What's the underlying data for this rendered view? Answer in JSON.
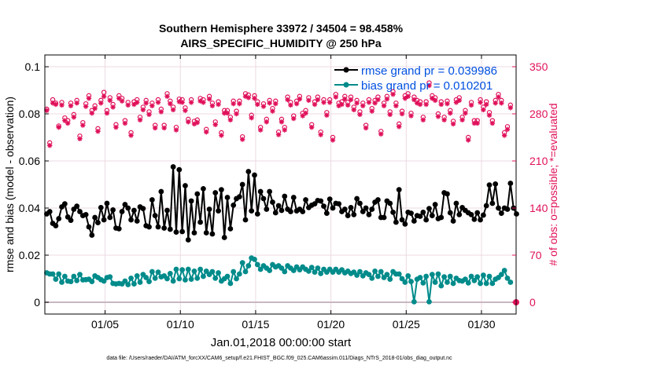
{
  "title": {
    "line1": "Southern Hemisphere 33972 / 34504 = 98.458%",
    "line2": "AIRS_SPECIFIC_HUMIDITY @ 250 hPa"
  },
  "xlabel": "Jan.01,2018 00:00:00 start",
  "footer": "data file: /Users/raeder/DAI/ATM_forcXX/CAM6_setup/f.e21.FHIST_BGC.f09_025.CAM6assim.011/Diags_NTrS_2018-01/obs_diag_output.nc",
  "colors": {
    "rmse": "#000000",
    "bias": "#008b8b",
    "obs": "#e0105a",
    "legend_text": "#0050e0"
  },
  "chart_data": {
    "type": "line",
    "ylabel": "rmse and bias (model - observation)",
    "ylabel_right": "# of obs: o=possible; *=evaluated",
    "xlim": [
      0.5,
      31.8
    ],
    "ylim": [
      -0.005,
      0.105
    ],
    "ylim_right": [
      -17.5,
      367.5
    ],
    "xticks": [
      4.5,
      9.5,
      14.5,
      19.5,
      24.5,
      29.5
    ],
    "xtick_labels": [
      "01/05",
      "01/10",
      "01/15",
      "01/20",
      "01/25",
      "01/30"
    ],
    "yticks": [
      0,
      0.02,
      0.04,
      0.06,
      0.08,
      0.1
    ],
    "ytick_labels": [
      "0",
      "0.02",
      "0.04",
      "0.06",
      "0.08",
      "0.1"
    ],
    "yticks_right": [
      0,
      70,
      140,
      210,
      280,
      350
    ],
    "ytick_labels_right": [
      "0",
      "70",
      "140",
      "210",
      "280",
      "350"
    ],
    "grid": true,
    "legend_position": "top-right",
    "legend": [
      "rmse grand pr = 0.039986",
      "bias grand pr = 0.010201"
    ],
    "series": [
      {
        "name": "rmse grand pr = 0.039986",
        "values": [
          0.0375,
          0.0385,
          0.0335,
          0.0325,
          0.0355,
          0.0405,
          0.0418,
          0.0362,
          0.0348,
          0.0395,
          0.0408,
          0.0385,
          0.0368,
          0.0372,
          0.032,
          0.0285,
          0.036,
          0.0338,
          0.0402,
          0.035,
          0.042,
          0.036,
          0.0392,
          0.0315,
          0.0312,
          0.0385,
          0.0415,
          0.04,
          0.035,
          0.039,
          0.0345,
          0.0405,
          0.0398,
          0.0325,
          0.032,
          0.0435,
          0.0368,
          0.032,
          0.047,
          0.0315,
          0.039,
          0.031,
          0.0575,
          0.0298,
          0.0563,
          0.03,
          0.0495,
          0.0265,
          0.043,
          0.0295,
          0.046,
          0.034,
          0.0482,
          0.0295,
          0.0395,
          0.029,
          0.0465,
          0.0388,
          0.0478,
          0.0275,
          0.0445,
          0.0312,
          0.0412,
          0.044,
          0.0448,
          0.05,
          0.035,
          0.0555,
          0.0388,
          0.054,
          0.0375,
          0.047,
          0.044,
          0.0395,
          0.047,
          0.0425,
          0.038,
          0.041,
          0.039,
          0.045,
          0.0395,
          0.0385,
          0.0445,
          0.0388,
          0.0395,
          0.0385,
          0.0435,
          0.0402,
          0.0412,
          0.0418,
          0.0432,
          0.043,
          0.0408,
          0.0378,
          0.0438,
          0.04,
          0.042,
          0.0418,
          0.0385,
          0.0395,
          0.0368,
          0.0402,
          0.0372,
          0.044,
          0.042,
          0.0385,
          0.04,
          0.0372,
          0.0395,
          0.0425,
          0.0435,
          0.036,
          0.036,
          0.043,
          0.042,
          0.0382,
          0.034,
          0.0478,
          0.035,
          0.0332,
          0.0382,
          0.0378,
          0.0345,
          0.0368,
          0.0365,
          0.0382,
          0.035,
          0.0398,
          0.0368,
          0.0415,
          0.0355,
          0.036,
          0.0465,
          0.046,
          0.038,
          0.0345,
          0.042,
          0.0372,
          0.0402,
          0.039,
          0.038,
          0.0372,
          0.0352,
          0.038,
          0.035,
          0.037,
          0.041,
          0.0498,
          0.042,
          0.0502,
          0.04,
          0.0378,
          0.04,
          0.0395,
          0.0505,
          0.04,
          0.0375
        ],
        "x_start": 0.625,
        "x_step": 0.2
      },
      {
        "name": "bias grand pr = 0.010201",
        "values": [
          0.0125,
          0.012,
          0.012,
          0.0098,
          0.012,
          0.0085,
          0.011,
          0.009,
          0.0088,
          0.011,
          0.0092,
          0.0118,
          0.0095,
          0.0096,
          0.0098,
          0.0088,
          0.0112,
          0.0105,
          0.0096,
          0.009,
          0.0105,
          0.0108,
          0.008,
          0.0078,
          0.008,
          0.0078,
          0.009,
          0.0075,
          0.0102,
          0.0078,
          0.0112,
          0.0085,
          0.0118,
          0.0105,
          0.0088,
          0.013,
          0.0102,
          0.0128,
          0.0108,
          0.0112,
          0.01,
          0.0122,
          0.009,
          0.014,
          0.01,
          0.0138,
          0.0095,
          0.014,
          0.0098,
          0.0132,
          0.0102,
          0.014,
          0.011,
          0.0132,
          0.0118,
          0.013,
          0.0102,
          0.0125,
          0.009,
          0.01,
          0.011,
          0.008,
          0.013,
          0.01,
          0.012,
          0.0168,
          0.013,
          0.0155,
          0.0188,
          0.0182,
          0.016,
          0.014,
          0.0155,
          0.0145,
          0.0135,
          0.016,
          0.015,
          0.0155,
          0.0145,
          0.013,
          0.0155,
          0.0145,
          0.0135,
          0.015,
          0.0138,
          0.015,
          0.014,
          0.0132,
          0.0148,
          0.0128,
          0.0145,
          0.0122,
          0.014,
          0.0128,
          0.014,
          0.0128,
          0.014,
          0.0128,
          0.0138,
          0.0125,
          0.0132,
          0.0122,
          0.0128,
          0.0115,
          0.013,
          0.0112,
          0.0125,
          0.0118,
          0.0102,
          0.0132,
          0.011,
          0.013,
          0.0105,
          0.0118,
          0.0098,
          0.013,
          0.012,
          0.012,
          0.01,
          0.0085,
          0.0112,
          0.0088,
          0.0002,
          0.0098,
          0.0105,
          0.0082,
          0.011,
          0.0002,
          0.0118,
          0.0085,
          0.012,
          0.007,
          0.0108,
          0.0085,
          0.011,
          0.008,
          0.0102,
          0.0092,
          0.009,
          0.0098,
          0.0082,
          0.011,
          0.0092,
          0.0108,
          0.008,
          0.0115,
          0.008,
          0.011,
          0.008,
          0.0098,
          0.0105,
          0.0118,
          0.0135,
          0.0102,
          0.0085
        ],
        "x_start": 0.625,
        "x_step": 0.2
      }
    ],
    "obs_possible": {
      "x_start": 0.625,
      "x_step": 0.2,
      "values": [
        287,
        237,
        301,
        296,
        262,
        297,
        274,
        270,
        296,
        279,
        300,
        247,
        267,
        295,
        307,
        285,
        292,
        258,
        300,
        312,
        285,
        304,
        294,
        264,
        307,
        303,
        270,
        297,
        252,
        298,
        301,
        275,
        290,
        300,
        283,
        296,
        263,
        301,
        287,
        263,
        310,
        299,
        290,
        260,
        302,
        301,
        289,
        272,
        301,
        269,
        271,
        303,
        301,
        257,
        306,
        296,
        268,
        298,
        252,
        285,
        285,
        275,
        299,
        284,
        299,
        246,
        310,
        308,
        278,
        307,
        298,
        260,
        295,
        272,
        300,
        288,
        299,
        253,
        272,
        260,
        305,
        297,
        277,
        299,
        306,
        281,
        285,
        304,
        264,
        298,
        305,
        253,
        301,
        282,
        301,
        245,
        309,
        296,
        298,
        306,
        297,
        305,
        290,
        300,
        283,
        296,
        263,
        301,
        288,
        300,
        305,
        254,
        296,
        306,
        283,
        313,
        296,
        265,
        284,
        307,
        310,
        281,
        305,
        300,
        298,
        275,
        298,
        326,
        307,
        304,
        280,
        298,
        275,
        299,
        285,
        269,
        301,
        304,
        275,
        285,
        245,
        297,
        270,
        270,
        301,
        290,
        298,
        282,
        270,
        300,
        309,
        300,
        252,
        261,
        293
      ]
    },
    "obs_evaluated": {
      "x_start": 0.625,
      "x_step": 0.2,
      "values": [
        285,
        233,
        296,
        294,
        260,
        293,
        270,
        266,
        292,
        275,
        296,
        243,
        263,
        291,
        303,
        281,
        288,
        254,
        296,
        306,
        281,
        300,
        290,
        260,
        303,
        299,
        266,
        293,
        248,
        294,
        297,
        271,
        286,
        296,
        279,
        292,
        259,
        297,
        283,
        259,
        306,
        295,
        286,
        256,
        298,
        297,
        285,
        268,
        297,
        265,
        267,
        299,
        297,
        253,
        302,
        292,
        264,
        294,
        248,
        281,
        281,
        271,
        295,
        280,
        295,
        242,
        306,
        304,
        274,
        303,
        294,
        256,
        291,
        268,
        296,
        284,
        295,
        249,
        268,
        256,
        301,
        293,
        273,
        295,
        302,
        277,
        281,
        300,
        260,
        294,
        301,
        249,
        297,
        278,
        297,
        241,
        305,
        292,
        294,
        302,
        293,
        301,
        286,
        296,
        279,
        292,
        259,
        297,
        284,
        296,
        301,
        250,
        292,
        302,
        279,
        309,
        292,
        261,
        280,
        303,
        306,
        277,
        301,
        296,
        294,
        271,
        294,
        322,
        303,
        300,
        276,
        294,
        271,
        295,
        281,
        265,
        297,
        300,
        271,
        281,
        241,
        293,
        266,
        266,
        297,
        286,
        294,
        278,
        266,
        296,
        305,
        296,
        248,
        257,
        289
      ]
    }
  }
}
